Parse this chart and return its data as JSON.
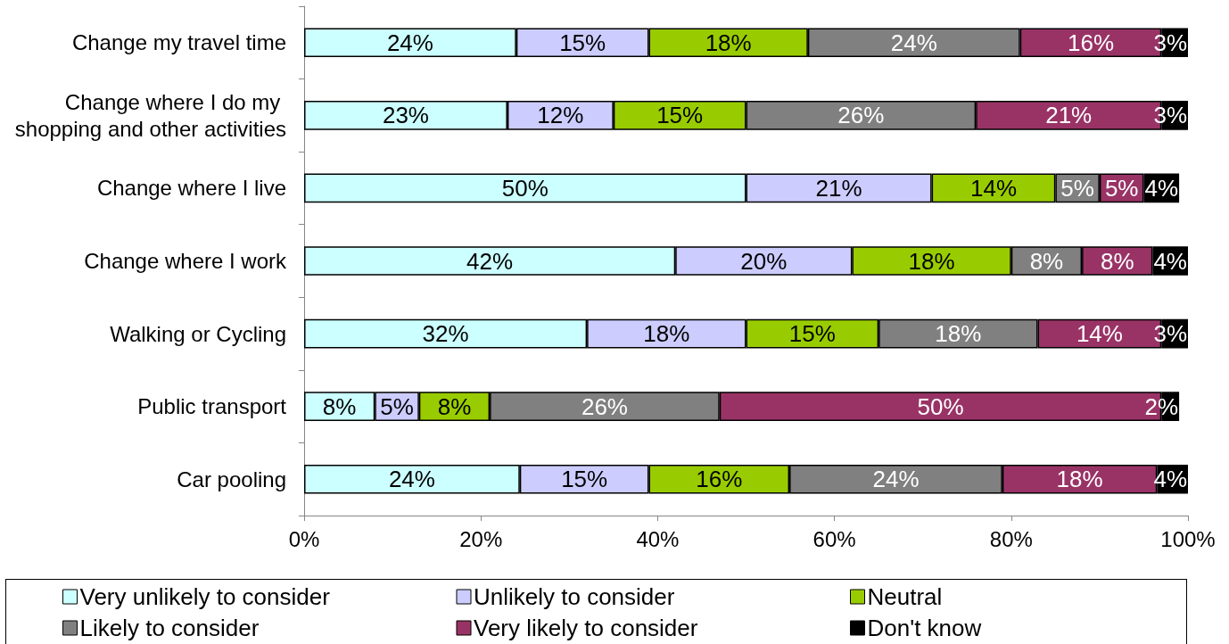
{
  "chart_data": {
    "type": "bar",
    "orientation": "horizontal",
    "stacked": true,
    "categories": [
      "Change my travel time",
      "Change where I do my shopping and other activities",
      "Change where I live",
      "Change where I work",
      "Walking or Cycling",
      "Public transport",
      "Car pooling"
    ],
    "series": [
      {
        "name": "Very unlikely to consider",
        "color": "#ccffff",
        "values": [
          24,
          23,
          50,
          42,
          32,
          8,
          24.4
        ],
        "value_labels": [
          "24%",
          "23%",
          "50%",
          "42%",
          "32%",
          "8%",
          "24%"
        ]
      },
      {
        "name": "Unlikely to consider",
        "color": "#ccccff",
        "values": [
          15,
          12,
          21,
          20,
          18,
          5,
          14.6
        ],
        "value_labels": [
          "15%",
          "12%",
          "21%",
          "20%",
          "18%",
          "5%",
          "15%"
        ]
      },
      {
        "name": "Neutral",
        "color": "#99cc00",
        "values": [
          18,
          15,
          14,
          18,
          15,
          8,
          15.9
        ],
        "value_labels": [
          "18%",
          "15%",
          "14%",
          "18%",
          "15%",
          "8%",
          "16%"
        ]
      },
      {
        "name": "Likely to consider",
        "color": "#808080",
        "values": [
          24,
          26,
          5,
          8,
          18,
          26,
          24.1
        ],
        "value_labels": [
          "24%",
          "26%",
          "5%",
          "8%",
          "18%",
          "26%",
          "24%"
        ]
      },
      {
        "name": "Very likely to consider",
        "color": "#993366",
        "values": [
          16,
          21,
          5,
          8,
          14,
          50,
          17.5
        ],
        "value_labels": [
          "16%",
          "21%",
          "5%",
          "8%",
          "14%",
          "50%",
          "18%"
        ]
      },
      {
        "name": "Don't know",
        "color": "#000000",
        "values": [
          3,
          3,
          4,
          4,
          3,
          2,
          3.5
        ],
        "value_labels": [
          "3%",
          "3%",
          "4%",
          "4%",
          "3%",
          "2%",
          "4%"
        ]
      }
    ],
    "xlim": [
      0,
      100
    ],
    "xticks": [
      {
        "value": 0,
        "label": "0%"
      },
      {
        "value": 20,
        "label": "20%"
      },
      {
        "value": 40,
        "label": "40%"
      },
      {
        "value": 60,
        "label": "60%"
      },
      {
        "value": 80,
        "label": "80%"
      },
      {
        "value": 100,
        "label": "100%"
      }
    ],
    "legend": "bottom"
  }
}
